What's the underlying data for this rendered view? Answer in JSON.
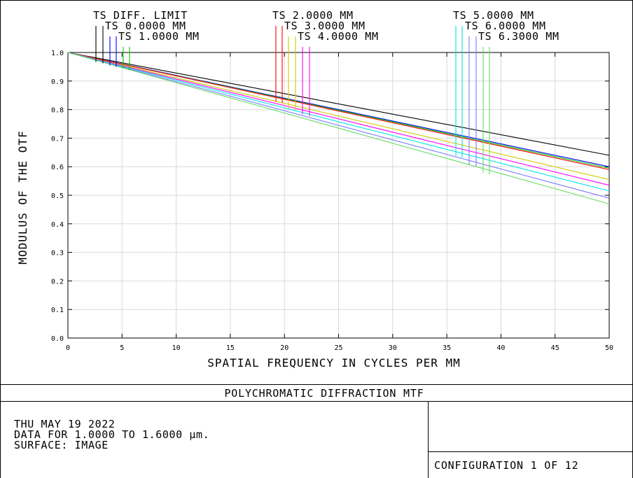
{
  "chart_data": {
    "type": "line",
    "title": "POLYCHROMATIC DIFFRACTION MTF",
    "xlabel": "SPATIAL FREQUENCY IN CYCLES PER MM",
    "ylabel": "MODULUS OF THE OTF",
    "xlim": [
      0,
      50
    ],
    "ylim": [
      0,
      1.0
    ],
    "x_ticks": [
      "0",
      "5",
      "10",
      "15",
      "20",
      "25",
      "30",
      "35",
      "40",
      "45",
      "50"
    ],
    "y_ticks": [
      "0.0",
      "0.1",
      "0.2",
      "0.3",
      "0.4",
      "0.5",
      "0.6",
      "0.7",
      "0.8",
      "0.9",
      "1.0"
    ],
    "grid": true,
    "series": [
      {
        "name": "TS DIFF. LIMIT",
        "color": "#000000",
        "x": [
          0,
          50
        ],
        "y": [
          1.0,
          0.64
        ]
      },
      {
        "name": "TS 0.0000 MM",
        "color": "#0000ff",
        "x": [
          0,
          50
        ],
        "y": [
          1.0,
          0.6
        ]
      },
      {
        "name": "TS 1.0000 MM",
        "color": "#00cc00",
        "x": [
          0,
          50
        ],
        "y": [
          1.0,
          0.595
        ]
      },
      {
        "name": "TS 2.0000 MM",
        "color": "#ff0000",
        "x": [
          0,
          50
        ],
        "y": [
          1.0,
          0.59
        ]
      },
      {
        "name": "TS 3.0000 MM",
        "color": "#cccc00",
        "x": [
          0,
          50
        ],
        "y": [
          1.0,
          0.555
        ]
      },
      {
        "name": "TS 4.0000 MM",
        "color": "#ff00ff",
        "x": [
          0,
          50
        ],
        "y": [
          1.0,
          0.535
        ]
      },
      {
        "name": "TS 5.0000 MM",
        "color": "#00e5e5",
        "x": [
          0,
          50
        ],
        "y": [
          1.0,
          0.515
        ]
      },
      {
        "name": "TS 6.0000 MM",
        "color": "#7a7aff",
        "x": [
          0,
          50
        ],
        "y": [
          1.0,
          0.49
        ]
      },
      {
        "name": "TS 6.3000 MM",
        "color": "#66dd66",
        "x": [
          0,
          50
        ],
        "y": [
          1.0,
          0.47
        ]
      }
    ]
  },
  "legend_labels": [
    {
      "text": "TS DIFF. LIMIT",
      "color": "#000000"
    },
    {
      "text": "TS 0.0000 MM",
      "color": "#000000"
    },
    {
      "text": "TS 1.0000 MM",
      "color": "#000000"
    },
    {
      "text": "TS 2.0000 MM",
      "color": "#000000"
    },
    {
      "text": "TS 3.0000 MM",
      "color": "#000000"
    },
    {
      "text": "TS 4.0000 MM",
      "color": "#000000"
    },
    {
      "text": "TS 5.0000 MM",
      "color": "#000000"
    },
    {
      "text": "TS 6.0000 MM",
      "color": "#000000"
    },
    {
      "text": "TS 6.3000 MM",
      "color": "#000000"
    }
  ],
  "footer": {
    "title": "POLYCHROMATIC DIFFRACTION MTF",
    "date_line": "THU MAY 19 2022",
    "data_line": "DATA FOR 1.0000 TO 1.6000 μm.",
    "surface_line": "SURFACE: IMAGE",
    "configuration": "CONFIGURATION 1 OF 12"
  }
}
